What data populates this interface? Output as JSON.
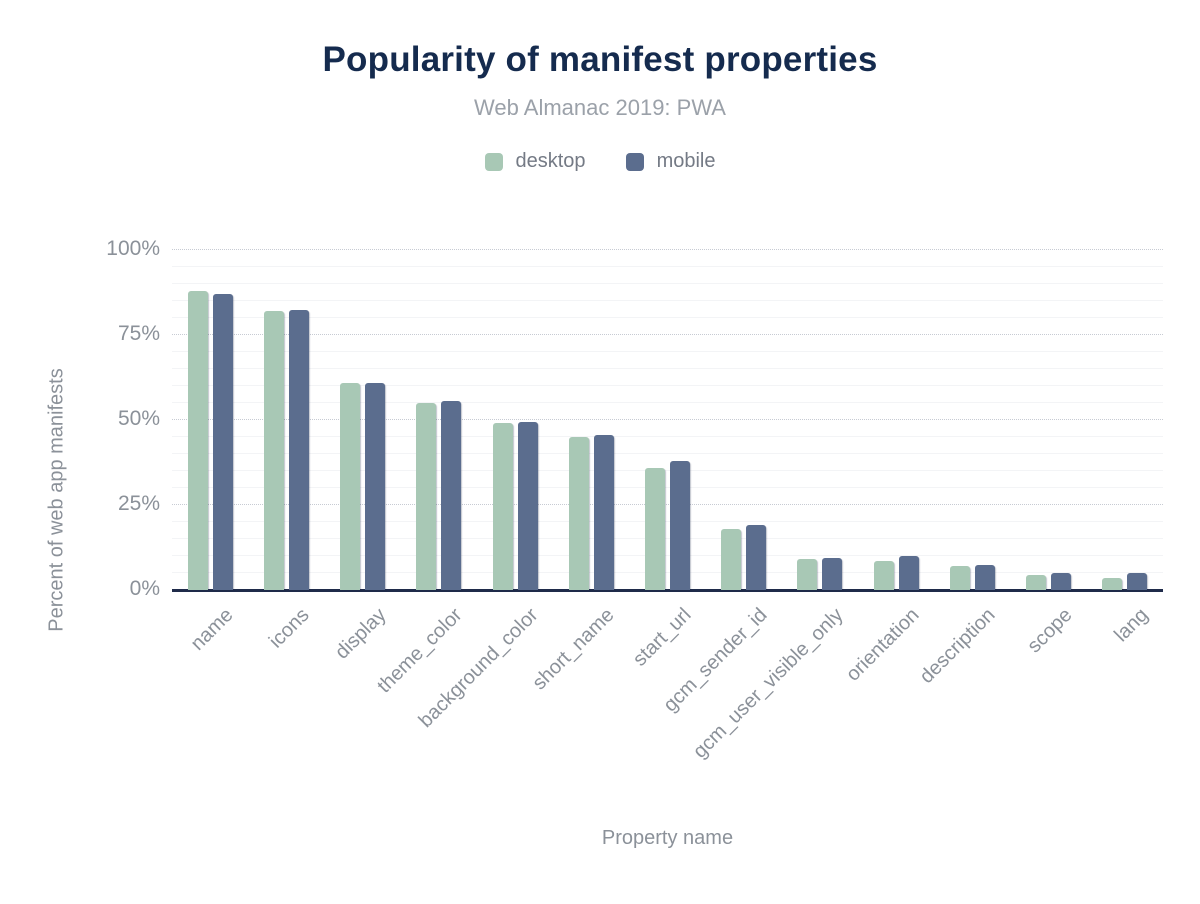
{
  "chart_data": {
    "type": "bar",
    "title": "Popularity of manifest properties",
    "subtitle": "Web Almanac 2019: PWA",
    "xlabel": "Property name",
    "ylabel": "Percent of web app manifests",
    "ylim": [
      0,
      100
    ],
    "yticks": [
      {
        "label": "0%",
        "value": 0
      },
      {
        "label": "25%",
        "value": 25
      },
      {
        "label": "50%",
        "value": 50
      },
      {
        "label": "75%",
        "value": 75
      },
      {
        "label": "100%",
        "value": 100
      }
    ],
    "grid": {
      "major_step": 25,
      "minor_step": 5,
      "major_style": "dotted",
      "minor_style": "solid"
    },
    "legend_position": "top",
    "categories": [
      "name",
      "icons",
      "display",
      "theme_color",
      "background_color",
      "short_name",
      "start_url",
      "gcm_sender_id",
      "gcm_user_visible_only",
      "orientation",
      "description",
      "scope",
      "lang"
    ],
    "series": [
      {
        "name": "desktop",
        "color": "#a8c8b5",
        "values": [
          88,
          82,
          61,
          55,
          49,
          45,
          36,
          18,
          9,
          8.5,
          7,
          4.5,
          3.5
        ]
      },
      {
        "name": "mobile",
        "color": "#5b6d8e",
        "values": [
          87,
          82.5,
          61,
          55.5,
          49.5,
          45.5,
          38,
          19,
          9.5,
          10,
          7.5,
          5,
          5
        ]
      }
    ],
    "colors": {
      "title": "#152b4e",
      "subtitle": "#9ba1a9",
      "axis_text": "#8b9199",
      "legend_text": "#747a85",
      "baseline": "#1f2b4a",
      "grid_major": "#c7cbd3",
      "grid_minor": "#f3f4f6",
      "background": "#ffffff"
    }
  }
}
